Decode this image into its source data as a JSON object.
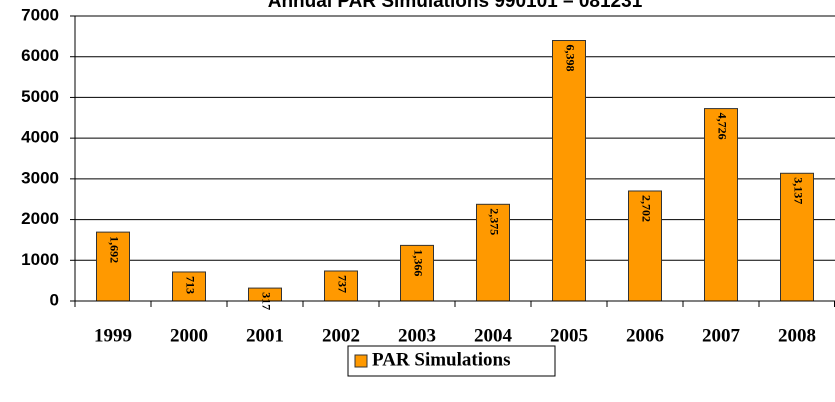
{
  "chart_data": {
    "type": "bar",
    "title": "Annual PAR Simulations 990101 – 081231",
    "categories": [
      "1999",
      "2000",
      "2001",
      "2002",
      "2003",
      "2004",
      "2005",
      "2006",
      "2007",
      "2008"
    ],
    "series": [
      {
        "name": "PAR Simulations",
        "color": "#ff9900",
        "values": [
          1692,
          713,
          317,
          737,
          1366,
          2375,
          6398,
          2702,
          4726,
          3137
        ],
        "value_labels": [
          "1,692",
          "713",
          "317",
          "737",
          "1,366",
          "2,375",
          "6,398",
          "2,702",
          "4,726",
          "3,137"
        ]
      }
    ],
    "ylim": [
      0,
      7000
    ],
    "yticks": [
      0,
      1000,
      2000,
      3000,
      4000,
      5000,
      6000,
      7000
    ],
    "grid": true,
    "legend": "bottom"
  }
}
